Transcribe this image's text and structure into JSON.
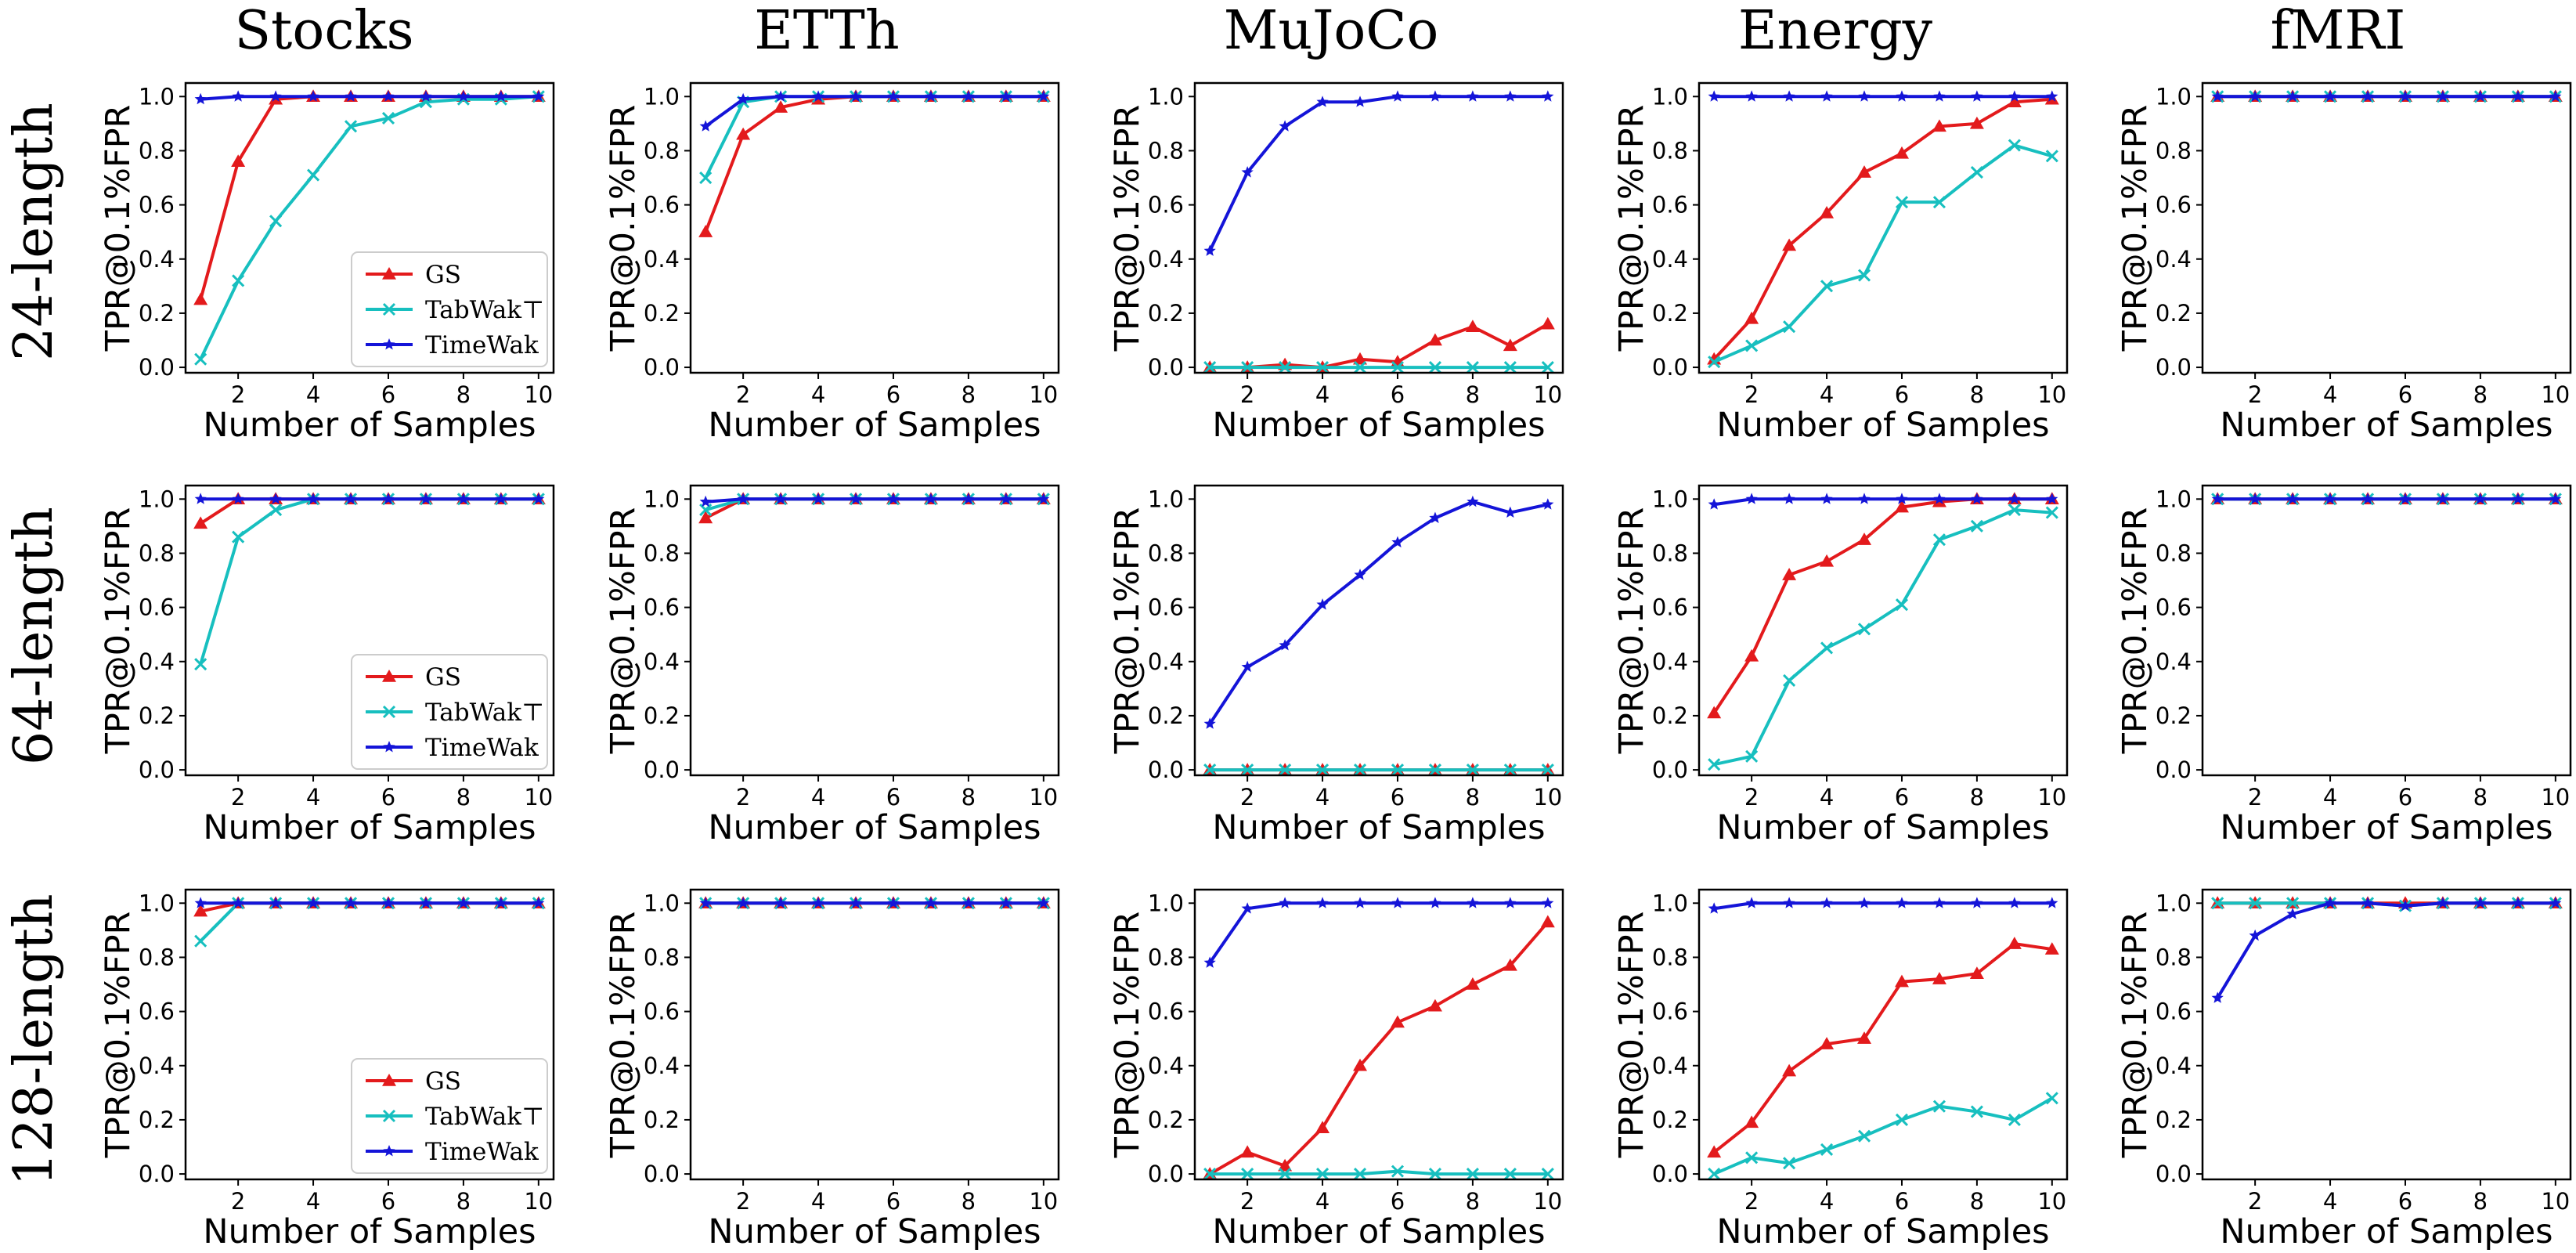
{
  "figure": {
    "column_titles": [
      "Stocks",
      "ETTh",
      "MuJoCo",
      "Energy",
      "fMRI"
    ],
    "row_labels": [
      "24-length",
      "64-length",
      "128-length"
    ],
    "xlabel": "Number of Samples",
    "ylabel": "TPR@0.1%FPR",
    "x_ticks": [
      2,
      4,
      6,
      8,
      10
    ],
    "y_ticks": [
      0.0,
      0.2,
      0.4,
      0.6,
      0.8,
      1.0
    ],
    "xlim": [
      0.6,
      10.4
    ],
    "ylim": [
      -0.02,
      1.05
    ],
    "legend": {
      "placement": "lower-right",
      "shown_in_column": 0,
      "entries": [
        "GS",
        "TabWak⊤",
        "TimeWak"
      ]
    },
    "series_styles": [
      {
        "name": "GS",
        "color": "#e31a1c",
        "marker": "triangle"
      },
      {
        "name": "TabWak⊤",
        "color": "#17bfbf",
        "marker": "x"
      },
      {
        "name": "TimeWak",
        "color": "#1414d8",
        "marker": "star"
      }
    ]
  },
  "chart_data": [
    {
      "type": "line",
      "row": 0,
      "col": 0,
      "title": "Stocks",
      "row_label": "24-length",
      "x": [
        1,
        2,
        3,
        4,
        5,
        6,
        7,
        8,
        9,
        10
      ],
      "series": [
        {
          "name": "GS",
          "values": [
            0.25,
            0.76,
            0.99,
            1.0,
            1.0,
            1.0,
            1.0,
            1.0,
            1.0,
            1.0
          ]
        },
        {
          "name": "TabWak⊤",
          "values": [
            0.03,
            0.32,
            0.54,
            0.71,
            0.89,
            0.92,
            0.98,
            0.99,
            0.99,
            1.0
          ]
        },
        {
          "name": "TimeWak",
          "values": [
            0.99,
            1.0,
            1.0,
            1.0,
            1.0,
            1.0,
            1.0,
            1.0,
            1.0,
            1.0
          ]
        }
      ]
    },
    {
      "type": "line",
      "row": 0,
      "col": 1,
      "title": "ETTh",
      "row_label": "24-length",
      "x": [
        1,
        2,
        3,
        4,
        5,
        6,
        7,
        8,
        9,
        10
      ],
      "series": [
        {
          "name": "GS",
          "values": [
            0.5,
            0.86,
            0.96,
            0.99,
            1.0,
            1.0,
            1.0,
            1.0,
            1.0,
            1.0
          ]
        },
        {
          "name": "TabWak⊤",
          "values": [
            0.7,
            0.98,
            1.0,
            1.0,
            1.0,
            1.0,
            1.0,
            1.0,
            1.0,
            1.0
          ]
        },
        {
          "name": "TimeWak",
          "values": [
            0.89,
            0.99,
            1.0,
            1.0,
            1.0,
            1.0,
            1.0,
            1.0,
            1.0,
            1.0
          ]
        }
      ]
    },
    {
      "type": "line",
      "row": 0,
      "col": 2,
      "title": "MuJoCo",
      "row_label": "24-length",
      "x": [
        1,
        2,
        3,
        4,
        5,
        6,
        7,
        8,
        9,
        10
      ],
      "series": [
        {
          "name": "GS",
          "values": [
            0.0,
            0.0,
            0.01,
            0.0,
            0.03,
            0.02,
            0.1,
            0.15,
            0.08,
            0.16
          ]
        },
        {
          "name": "TabWak⊤",
          "values": [
            0.0,
            0.0,
            0.0,
            0.0,
            0.0,
            0.0,
            0.0,
            0.0,
            0.0,
            0.0
          ]
        },
        {
          "name": "TimeWak",
          "values": [
            0.43,
            0.72,
            0.89,
            0.98,
            0.98,
            1.0,
            1.0,
            1.0,
            1.0,
            1.0
          ]
        }
      ]
    },
    {
      "type": "line",
      "row": 0,
      "col": 3,
      "title": "Energy",
      "row_label": "24-length",
      "x": [
        1,
        2,
        3,
        4,
        5,
        6,
        7,
        8,
        9,
        10
      ],
      "series": [
        {
          "name": "GS",
          "values": [
            0.03,
            0.18,
            0.45,
            0.57,
            0.72,
            0.79,
            0.89,
            0.9,
            0.98,
            0.99
          ]
        },
        {
          "name": "TabWak⊤",
          "values": [
            0.02,
            0.08,
            0.15,
            0.3,
            0.34,
            0.61,
            0.61,
            0.72,
            0.82,
            0.78
          ]
        },
        {
          "name": "TimeWak",
          "values": [
            1.0,
            1.0,
            1.0,
            1.0,
            1.0,
            1.0,
            1.0,
            1.0,
            1.0,
            1.0
          ]
        }
      ]
    },
    {
      "type": "line",
      "row": 0,
      "col": 4,
      "title": "fMRI",
      "row_label": "24-length",
      "x": [
        1,
        2,
        3,
        4,
        5,
        6,
        7,
        8,
        9,
        10
      ],
      "series": [
        {
          "name": "GS",
          "values": [
            1.0,
            1.0,
            1.0,
            1.0,
            1.0,
            1.0,
            1.0,
            1.0,
            1.0,
            1.0
          ]
        },
        {
          "name": "TabWak⊤",
          "values": [
            1.0,
            1.0,
            1.0,
            1.0,
            1.0,
            1.0,
            1.0,
            1.0,
            1.0,
            1.0
          ]
        },
        {
          "name": "TimeWak",
          "values": [
            1.0,
            1.0,
            1.0,
            1.0,
            1.0,
            1.0,
            1.0,
            1.0,
            1.0,
            1.0
          ]
        }
      ]
    },
    {
      "type": "line",
      "row": 1,
      "col": 0,
      "title": "Stocks",
      "row_label": "64-length",
      "x": [
        1,
        2,
        3,
        4,
        5,
        6,
        7,
        8,
        9,
        10
      ],
      "series": [
        {
          "name": "GS",
          "values": [
            0.91,
            1.0,
            1.0,
            1.0,
            1.0,
            1.0,
            1.0,
            1.0,
            1.0,
            1.0
          ]
        },
        {
          "name": "TabWak⊤",
          "values": [
            0.39,
            0.86,
            0.96,
            1.0,
            1.0,
            1.0,
            1.0,
            1.0,
            1.0,
            1.0
          ]
        },
        {
          "name": "TimeWak",
          "values": [
            1.0,
            1.0,
            1.0,
            1.0,
            1.0,
            1.0,
            1.0,
            1.0,
            1.0,
            1.0
          ]
        }
      ]
    },
    {
      "type": "line",
      "row": 1,
      "col": 1,
      "title": "ETTh",
      "row_label": "64-length",
      "x": [
        1,
        2,
        3,
        4,
        5,
        6,
        7,
        8,
        9,
        10
      ],
      "series": [
        {
          "name": "GS",
          "values": [
            0.93,
            1.0,
            1.0,
            1.0,
            1.0,
            1.0,
            1.0,
            1.0,
            1.0,
            1.0
          ]
        },
        {
          "name": "TabWak⊤",
          "values": [
            0.96,
            1.0,
            1.0,
            1.0,
            1.0,
            1.0,
            1.0,
            1.0,
            1.0,
            1.0
          ]
        },
        {
          "name": "TimeWak",
          "values": [
            0.99,
            1.0,
            1.0,
            1.0,
            1.0,
            1.0,
            1.0,
            1.0,
            1.0,
            1.0
          ]
        }
      ]
    },
    {
      "type": "line",
      "row": 1,
      "col": 2,
      "title": "MuJoCo",
      "row_label": "64-length",
      "x": [
        1,
        2,
        3,
        4,
        5,
        6,
        7,
        8,
        9,
        10
      ],
      "series": [
        {
          "name": "GS",
          "values": [
            0.0,
            0.0,
            0.0,
            0.0,
            0.0,
            0.0,
            0.0,
            0.0,
            0.0,
            0.0
          ]
        },
        {
          "name": "TabWak⊤",
          "values": [
            0.0,
            0.0,
            0.0,
            0.0,
            0.0,
            0.0,
            0.0,
            0.0,
            0.0,
            0.0
          ]
        },
        {
          "name": "TimeWak",
          "values": [
            0.17,
            0.38,
            0.46,
            0.61,
            0.72,
            0.84,
            0.93,
            0.99,
            0.95,
            0.98
          ]
        }
      ]
    },
    {
      "type": "line",
      "row": 1,
      "col": 3,
      "title": "Energy",
      "row_label": "64-length",
      "x": [
        1,
        2,
        3,
        4,
        5,
        6,
        7,
        8,
        9,
        10
      ],
      "series": [
        {
          "name": "GS",
          "values": [
            0.21,
            0.42,
            0.72,
            0.77,
            0.85,
            0.97,
            0.99,
            1.0,
            1.0,
            1.0
          ]
        },
        {
          "name": "TabWak⊤",
          "values": [
            0.02,
            0.05,
            0.33,
            0.45,
            0.52,
            0.61,
            0.85,
            0.9,
            0.96,
            0.95
          ]
        },
        {
          "name": "TimeWak",
          "values": [
            0.98,
            1.0,
            1.0,
            1.0,
            1.0,
            1.0,
            1.0,
            1.0,
            1.0,
            1.0
          ]
        }
      ]
    },
    {
      "type": "line",
      "row": 1,
      "col": 4,
      "title": "fMRI",
      "row_label": "64-length",
      "x": [
        1,
        2,
        3,
        4,
        5,
        6,
        7,
        8,
        9,
        10
      ],
      "series": [
        {
          "name": "GS",
          "values": [
            1.0,
            1.0,
            1.0,
            1.0,
            1.0,
            1.0,
            1.0,
            1.0,
            1.0,
            1.0
          ]
        },
        {
          "name": "TabWak⊤",
          "values": [
            1.0,
            1.0,
            1.0,
            1.0,
            1.0,
            1.0,
            1.0,
            1.0,
            1.0,
            1.0
          ]
        },
        {
          "name": "TimeWak",
          "values": [
            1.0,
            1.0,
            1.0,
            1.0,
            1.0,
            1.0,
            1.0,
            1.0,
            1.0,
            1.0
          ]
        }
      ]
    },
    {
      "type": "line",
      "row": 2,
      "col": 0,
      "title": "Stocks",
      "row_label": "128-length",
      "x": [
        1,
        2,
        3,
        4,
        5,
        6,
        7,
        8,
        9,
        10
      ],
      "series": [
        {
          "name": "GS",
          "values": [
            0.97,
            1.0,
            1.0,
            1.0,
            1.0,
            1.0,
            1.0,
            1.0,
            1.0,
            1.0
          ]
        },
        {
          "name": "TabWak⊤",
          "values": [
            0.86,
            1.0,
            1.0,
            1.0,
            1.0,
            1.0,
            1.0,
            1.0,
            1.0,
            1.0
          ]
        },
        {
          "name": "TimeWak",
          "values": [
            1.0,
            1.0,
            1.0,
            1.0,
            1.0,
            1.0,
            1.0,
            1.0,
            1.0,
            1.0
          ]
        }
      ]
    },
    {
      "type": "line",
      "row": 2,
      "col": 1,
      "title": "ETTh",
      "row_label": "128-length",
      "x": [
        1,
        2,
        3,
        4,
        5,
        6,
        7,
        8,
        9,
        10
      ],
      "series": [
        {
          "name": "GS",
          "values": [
            1.0,
            1.0,
            1.0,
            1.0,
            1.0,
            1.0,
            1.0,
            1.0,
            1.0,
            1.0
          ]
        },
        {
          "name": "TabWak⊤",
          "values": [
            1.0,
            1.0,
            1.0,
            1.0,
            1.0,
            1.0,
            1.0,
            1.0,
            1.0,
            1.0
          ]
        },
        {
          "name": "TimeWak",
          "values": [
            1.0,
            1.0,
            1.0,
            1.0,
            1.0,
            1.0,
            1.0,
            1.0,
            1.0,
            1.0
          ]
        }
      ]
    },
    {
      "type": "line",
      "row": 2,
      "col": 2,
      "title": "MuJoCo",
      "row_label": "128-length",
      "x": [
        1,
        2,
        3,
        4,
        5,
        6,
        7,
        8,
        9,
        10
      ],
      "series": [
        {
          "name": "GS",
          "values": [
            0.0,
            0.08,
            0.03,
            0.17,
            0.4,
            0.56,
            0.62,
            0.7,
            0.77,
            0.93
          ]
        },
        {
          "name": "TabWak⊤",
          "values": [
            0.0,
            0.0,
            0.0,
            0.0,
            0.0,
            0.01,
            0.0,
            0.0,
            0.0,
            0.0
          ]
        },
        {
          "name": "TimeWak",
          "values": [
            0.78,
            0.98,
            1.0,
            1.0,
            1.0,
            1.0,
            1.0,
            1.0,
            1.0,
            1.0
          ]
        }
      ]
    },
    {
      "type": "line",
      "row": 2,
      "col": 3,
      "title": "Energy",
      "row_label": "128-length",
      "x": [
        1,
        2,
        3,
        4,
        5,
        6,
        7,
        8,
        9,
        10
      ],
      "series": [
        {
          "name": "GS",
          "values": [
            0.08,
            0.19,
            0.38,
            0.48,
            0.5,
            0.71,
            0.72,
            0.74,
            0.85,
            0.83
          ]
        },
        {
          "name": "TabWak⊤",
          "values": [
            0.0,
            0.06,
            0.04,
            0.09,
            0.14,
            0.2,
            0.25,
            0.23,
            0.2,
            0.28
          ]
        },
        {
          "name": "TimeWak",
          "values": [
            0.98,
            1.0,
            1.0,
            1.0,
            1.0,
            1.0,
            1.0,
            1.0,
            1.0,
            1.0
          ]
        }
      ]
    },
    {
      "type": "line",
      "row": 2,
      "col": 4,
      "title": "fMRI",
      "row_label": "128-length",
      "x": [
        1,
        2,
        3,
        4,
        5,
        6,
        7,
        8,
        9,
        10
      ],
      "series": [
        {
          "name": "GS",
          "values": [
            1.0,
            1.0,
            1.0,
            1.0,
            1.0,
            1.0,
            1.0,
            1.0,
            1.0,
            1.0
          ]
        },
        {
          "name": "TabWak⊤",
          "values": [
            1.0,
            1.0,
            1.0,
            1.0,
            1.0,
            0.99,
            1.0,
            1.0,
            1.0,
            1.0
          ]
        },
        {
          "name": "TimeWak",
          "values": [
            0.65,
            0.88,
            0.96,
            1.0,
            1.0,
            0.99,
            1.0,
            1.0,
            1.0,
            1.0
          ]
        }
      ]
    }
  ]
}
